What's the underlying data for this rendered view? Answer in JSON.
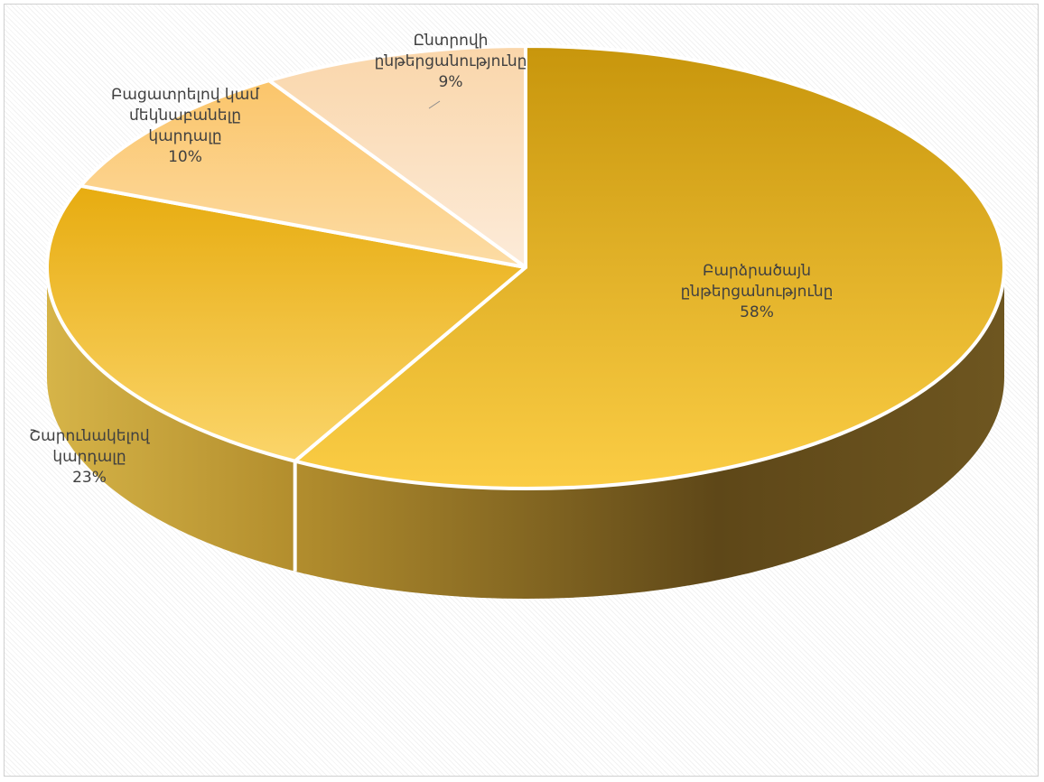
{
  "chart_data": {
    "type": "pie",
    "style": "3d",
    "title": "",
    "legend": "none",
    "start_angle_from_top_deg": 0,
    "direction": "clockwise",
    "slices": [
      {
        "label_lines": [
          "Բարձրածայն",
          "ընթերցանությունը"
        ],
        "value": 58,
        "value_label": "58%",
        "color": "#f0be34"
      },
      {
        "label_lines": [
          "Շարունակելով",
          "կարդալը"
        ],
        "value": 23,
        "value_label": "23%",
        "color": "#f3c443"
      },
      {
        "label_lines": [
          "Բացատրելով կամ",
          "մեկնաբանելը",
          "կարդալը"
        ],
        "value": 10,
        "value_label": "10%",
        "color": "#f9cf7f"
      },
      {
        "label_lines": [
          "Ընտրովի",
          "ընթերցանությունը"
        ],
        "value": 9,
        "value_label": "9%",
        "color": "#fbe3c4"
      }
    ]
  }
}
